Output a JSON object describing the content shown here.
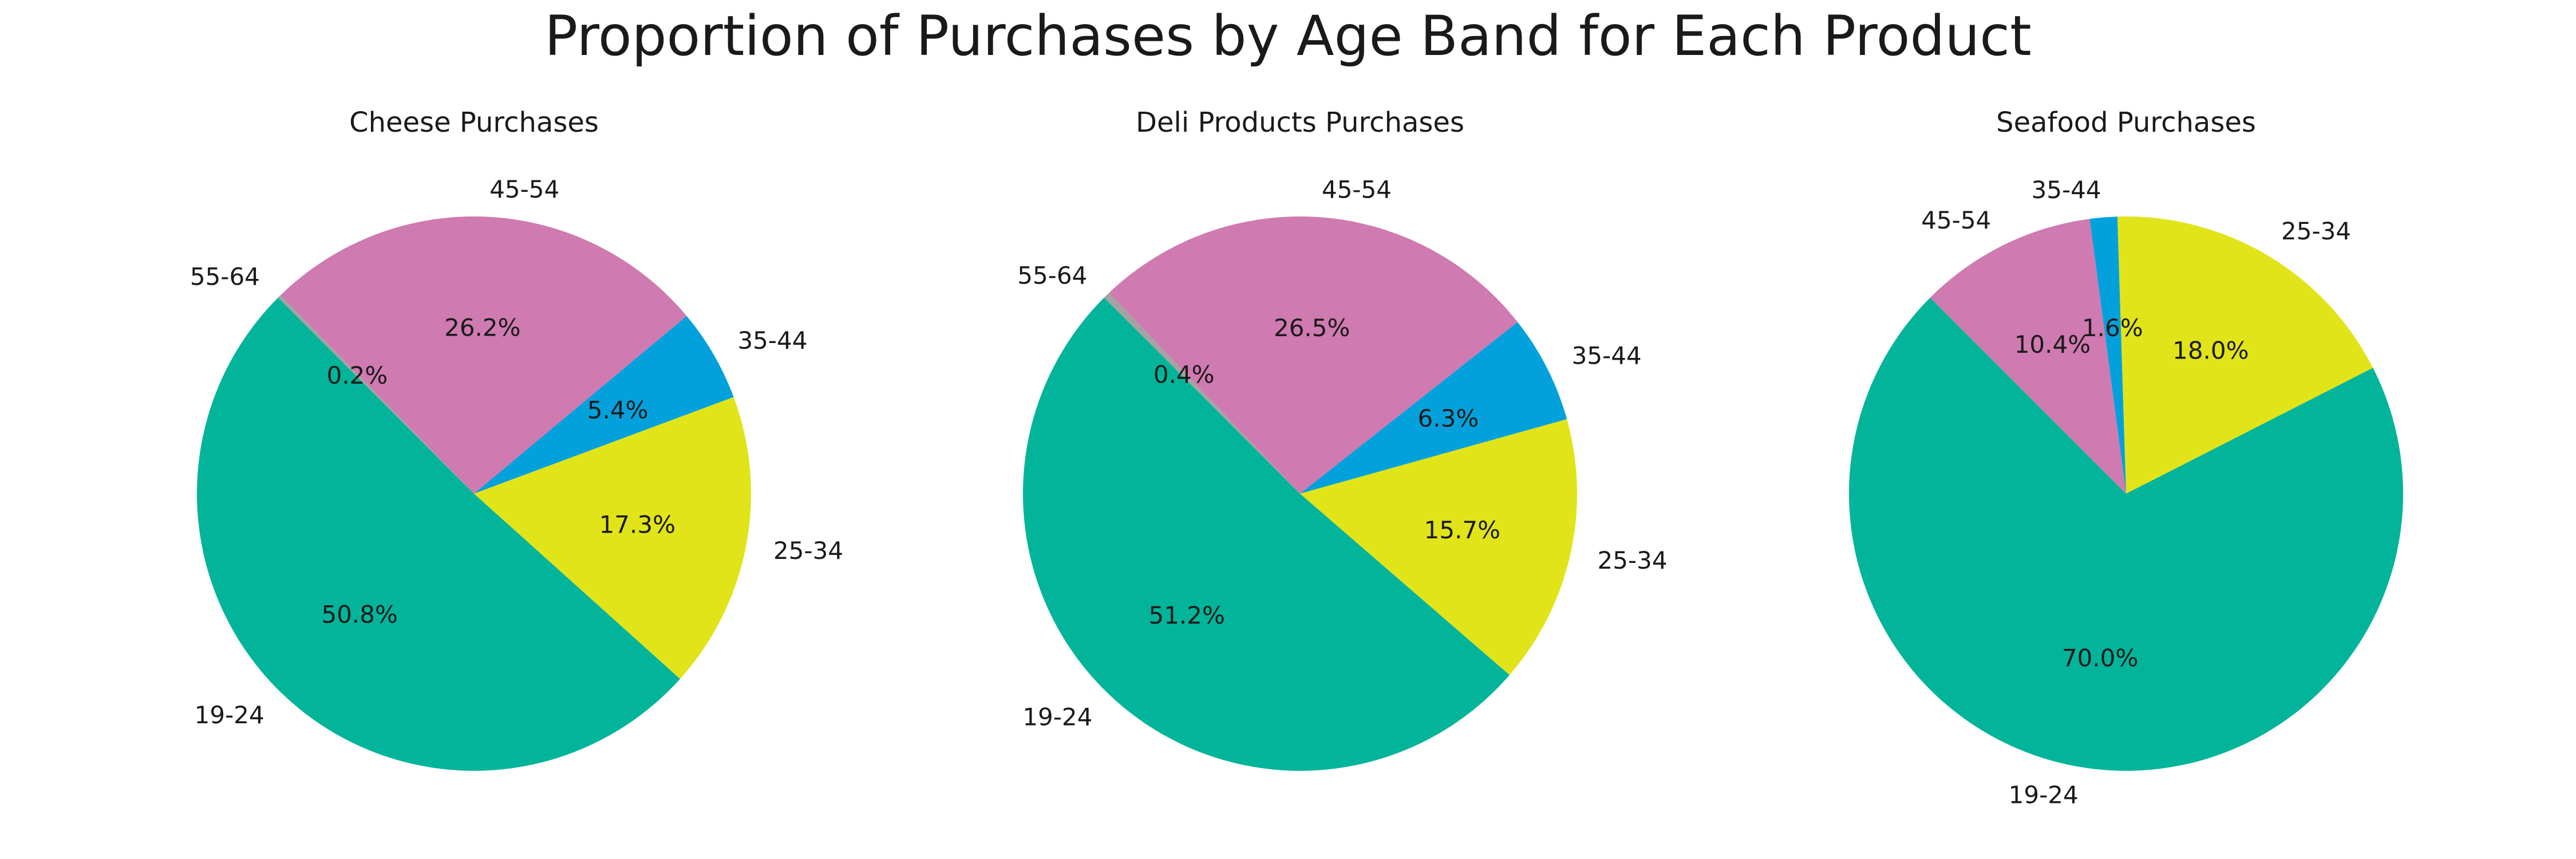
{
  "title": "Proportion of Purchases by Age Band for Each Product",
  "colors": {
    "19-24": "#02b49a",
    "25-34": "#e1e419",
    "35-44": "#03a1dc",
    "45-54": "#cf7ab0",
    "55-64": "#a3a3a3"
  },
  "chart_data": [
    {
      "type": "pie",
      "title": "Cheese Purchases",
      "start_angle_deg": 135,
      "direction": "counterclockwise",
      "labels": [
        "19-24",
        "25-34",
        "35-44",
        "45-54",
        "55-64"
      ],
      "values": [
        50.8,
        17.3,
        5.4,
        26.2,
        0.2
      ],
      "value_labels": [
        "50.8%",
        "17.3%",
        "5.4%",
        "26.2%",
        "0.2%"
      ]
    },
    {
      "type": "pie",
      "title": "Deli Products Purchases",
      "start_angle_deg": 135,
      "direction": "counterclockwise",
      "labels": [
        "19-24",
        "25-34",
        "35-44",
        "45-54",
        "55-64"
      ],
      "values": [
        51.2,
        15.7,
        6.3,
        26.5,
        0.4
      ],
      "value_labels": [
        "51.2%",
        "15.7%",
        "6.3%",
        "26.5%",
        "0.4%"
      ]
    },
    {
      "type": "pie",
      "title": "Seafood Purchases",
      "start_angle_deg": 135,
      "direction": "counterclockwise",
      "labels": [
        "19-24",
        "25-34",
        "35-44",
        "45-54"
      ],
      "values": [
        70.0,
        18.0,
        1.6,
        10.4
      ],
      "value_labels": [
        "70.0%",
        "18.0%",
        "1.6%",
        "10.4%"
      ]
    }
  ]
}
